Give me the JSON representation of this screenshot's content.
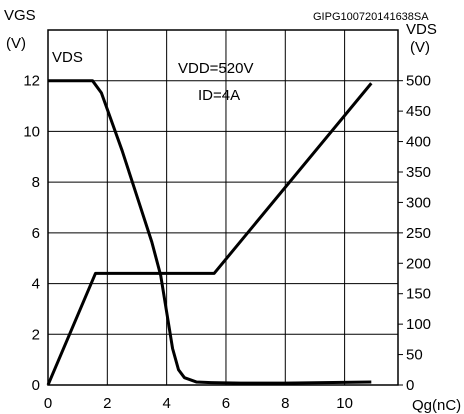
{
  "chart_data": {
    "type": "line",
    "code": "GIPG100720141638SA",
    "left_axis": {
      "label_top": "VGS",
      "label_unit": "(V)",
      "range": [
        0,
        14
      ],
      "ticks": [
        "0",
        "2",
        "4",
        "6",
        "8",
        "10",
        "12"
      ]
    },
    "right_axis": {
      "label_top": "VDS",
      "label_unit": "(V)",
      "range": [
        0,
        583.3
      ],
      "ticks": [
        "0",
        "50",
        "100",
        "150",
        "200",
        "250",
        "300",
        "350",
        "400",
        "450",
        "500"
      ]
    },
    "x_axis": {
      "label": "Qg(nC)",
      "range": [
        0,
        11.8
      ],
      "ticks": [
        "0",
        "2",
        "4",
        "6",
        "8",
        "10"
      ]
    },
    "annotations": {
      "vds_curve_label": "VDS",
      "vdd": "VDD=520V",
      "id": "ID=4A"
    },
    "series": [
      {
        "axis": "left",
        "x": [
          0,
          1.6,
          5.6,
          10.9
        ],
        "y": [
          0,
          4.4,
          4.4,
          11.9
        ]
      },
      {
        "axis": "right",
        "x": [
          0,
          1.5,
          1.8,
          2.5,
          3.0,
          3.5,
          3.8,
          4.0,
          4.2,
          4.4,
          4.6,
          5.0,
          5.5,
          6.5,
          8.0,
          10.9
        ],
        "y": [
          500,
          500,
          480,
          385,
          310,
          235,
          180,
          120,
          60,
          25,
          12,
          5,
          4,
          3,
          3,
          5
        ]
      }
    ]
  }
}
